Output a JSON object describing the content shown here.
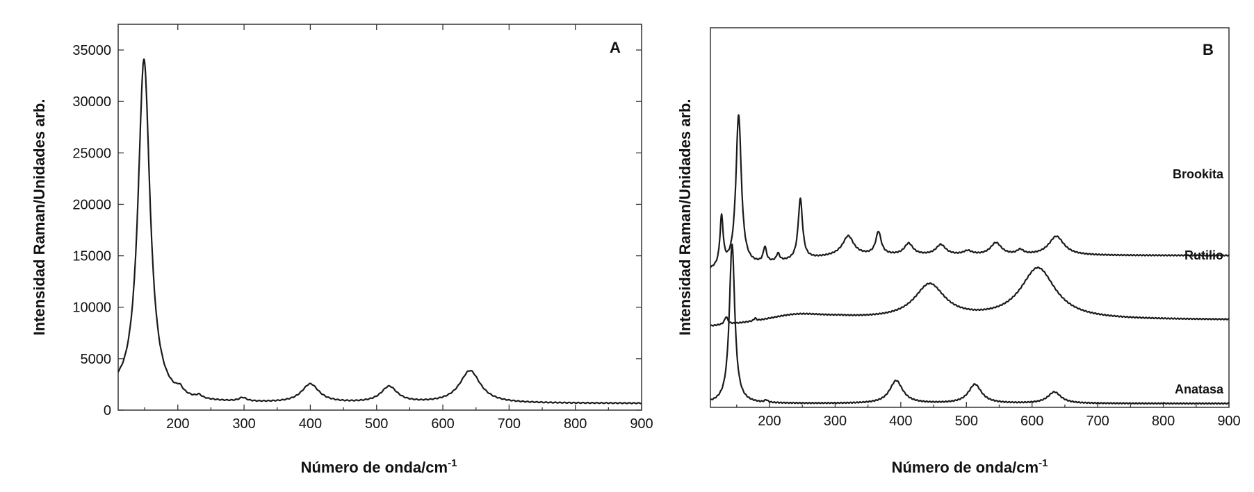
{
  "chart_data": [
    {
      "type": "line",
      "panel": "A",
      "xlabel": "Número de onda",
      "xlabel_unit": "/cm",
      "xlabel_exp": "-1",
      "ylabel": "Intensidad Raman/Unidades arb.",
      "xlim": [
        110,
        900
      ],
      "ylim": [
        0,
        37500
      ],
      "x_ticks": [
        200,
        300,
        400,
        500,
        600,
        700,
        800,
        900
      ],
      "y_ticks": [
        0,
        5000,
        10000,
        15000,
        20000,
        25000,
        30000,
        35000
      ],
      "baseline": 650,
      "peaks": [
        {
          "x": 149,
          "height": 33400,
          "width": 11
        },
        {
          "x": 203,
          "height": 550,
          "width": 6
        },
        {
          "x": 232,
          "height": 300,
          "width": 5
        },
        {
          "x": 298,
          "height": 350,
          "width": 7
        },
        {
          "x": 400,
          "height": 1800,
          "width": 16
        },
        {
          "x": 519,
          "height": 1550,
          "width": 15
        },
        {
          "x": 641,
          "height": 3150,
          "width": 19
        }
      ],
      "series": [
        {
          "name": "",
          "color": "#1a1a1a"
        }
      ]
    },
    {
      "type": "line",
      "panel": "B",
      "xlabel": "Número de onda",
      "xlabel_unit": "/cm",
      "xlabel_exp": "-1",
      "ylabel": "Intensidad Raman/Unidades arb.",
      "xlim": [
        110,
        900
      ],
      "x_ticks": [
        200,
        300,
        400,
        500,
        600,
        700,
        800,
        900
      ],
      "y_units": "arbitrary",
      "ylim": [
        0,
        1
      ],
      "series": [
        {
          "name": "Brookita",
          "baseline_start": 0.36,
          "baseline_end": 0.4,
          "peaks": [
            {
              "x": 127,
              "height": 0.13,
              "width": 3
            },
            {
              "x": 153,
              "height": 0.4,
              "width": 5
            },
            {
              "x": 193,
              "height": 0.04,
              "width": 3
            },
            {
              "x": 213,
              "height": 0.02,
              "width": 3
            },
            {
              "x": 247,
              "height": 0.16,
              "width": 4
            },
            {
              "x": 320,
              "height": 0.05,
              "width": 10
            },
            {
              "x": 366,
              "height": 0.06,
              "width": 5
            },
            {
              "x": 412,
              "height": 0.03,
              "width": 8
            },
            {
              "x": 461,
              "height": 0.027,
              "width": 9
            },
            {
              "x": 502,
              "height": 0.01,
              "width": 8
            },
            {
              "x": 545,
              "height": 0.032,
              "width": 10
            },
            {
              "x": 582,
              "height": 0.012,
              "width": 6
            },
            {
              "x": 637,
              "height": 0.05,
              "width": 14
            }
          ]
        },
        {
          "name": "Rutilio",
          "baseline_start": 0.21,
          "baseline_end": 0.23,
          "broad_hump": {
            "x": 240,
            "height": 0.02,
            "width": 60
          },
          "peaks": [
            {
              "x": 134,
              "height": 0.02,
              "width": 3
            },
            {
              "x": 178,
              "height": 0.007,
              "width": 2
            },
            {
              "x": 444,
              "height": 0.09,
              "width": 28
            },
            {
              "x": 609,
              "height": 0.135,
              "width": 32
            }
          ]
        },
        {
          "name": "Anatasa",
          "baseline_start": 0.01,
          "baseline_end": 0.01,
          "peaks": [
            {
              "x": 143,
              "height": 0.42,
              "width": 5
            },
            {
              "x": 195,
              "height": 0.006,
              "width": 3
            },
            {
              "x": 393,
              "height": 0.06,
              "width": 12
            },
            {
              "x": 513,
              "height": 0.05,
              "width": 12
            },
            {
              "x": 634,
              "height": 0.03,
              "width": 12
            }
          ]
        }
      ]
    }
  ]
}
